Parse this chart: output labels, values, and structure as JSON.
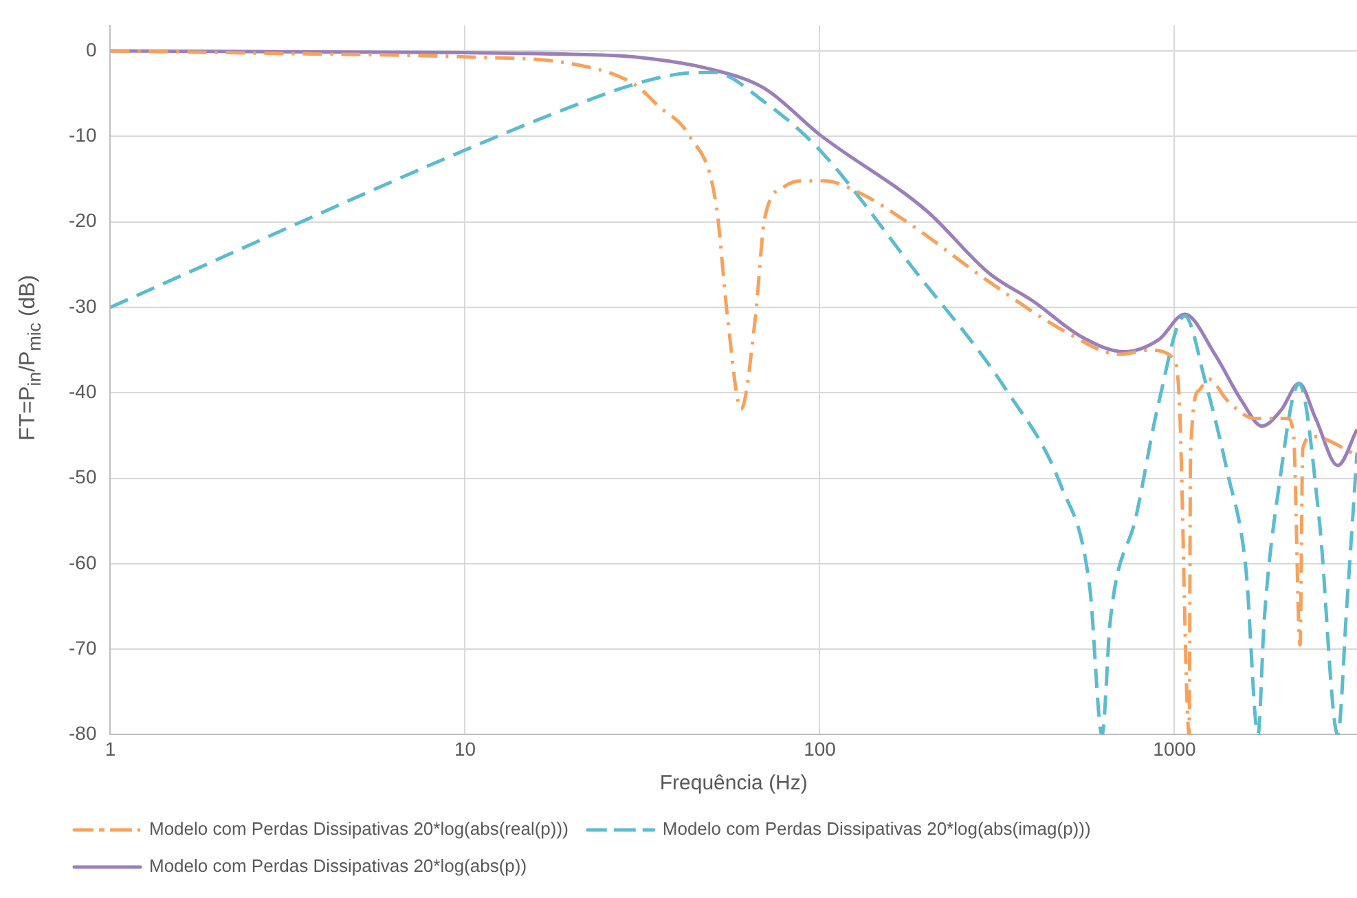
{
  "chart_data": {
    "type": "line",
    "xlabel": "Frequência (Hz)",
    "ylabel": "FT=P$_{in}$/P$_{mic}$ (dB)",
    "log": "x",
    "xlim": [
      1,
      3270
    ],
    "xticks": [
      1,
      10,
      100,
      1000
    ],
    "ylim": [
      -80,
      3
    ],
    "yticks": [
      0,
      -10,
      -20,
      -30,
      -40,
      -50,
      -60,
      -70,
      -80
    ],
    "grid": true,
    "legend": "bottom",
    "marker": "none",
    "series": [
      {
        "name": "Modelo com Perdas Dissipativas 20*log(abs(real(p)))",
        "color": "#f7a25c",
        "line_style": "dashdot",
        "x": [
          1,
          3,
          10,
          20,
          30,
          35,
          43,
          51,
          55,
          60,
          65.8,
          70,
          80,
          89,
          103,
          128,
          176,
          300,
          500,
          700,
          850,
          990,
          1032,
          1100,
          1110,
          1173,
          1250,
          1410,
          1680,
          2080,
          2165,
          2260,
          2300,
          2450,
          3270
        ],
        "values": [
          0,
          -0.3,
          -0.7,
          -1.5,
          -3.9,
          -6.4,
          -10,
          -17.9,
          -31.3,
          -41.9,
          -31.3,
          -19.5,
          -15.8,
          -15.2,
          -15.2,
          -16.5,
          -20,
          -27,
          -33,
          -35.5,
          -35,
          -35.9,
          -40.9,
          -80,
          -47,
          -39.7,
          -38.4,
          -40.9,
          -43,
          -43,
          -44.8,
          -69.5,
          -46.5,
          -45.1,
          -47.3
        ]
      },
      {
        "name": "Modelo com Perdas Dissipativas 20*log(abs(imag(p)))",
        "color": "#5bbccf",
        "line_style": "dashed",
        "x": [
          1,
          10,
          20,
          30,
          40,
          50,
          70,
          100,
          183,
          336,
          480,
          577,
          625,
          659,
          780,
          900,
          1069,
          1220,
          1410,
          1590,
          1720,
          1790,
          1970,
          2245,
          2560,
          2886,
          3060,
          3270
        ],
        "values": [
          -30,
          -11.6,
          -6.5,
          -3.9,
          -2.7,
          -2.5,
          -6,
          -11.6,
          -25.4,
          -39.7,
          -51,
          -62.8,
          -80,
          -66.7,
          -54.4,
          -41.4,
          -31,
          -38.6,
          -49.3,
          -60.6,
          -80,
          -66.7,
          -51,
          -38.9,
          -54.9,
          -80,
          -65,
          -47
        ]
      },
      {
        "name": "Modelo com Perdas Dissipativas 20*log(abs(p))",
        "color": "#9a7fba",
        "line_style": "solid",
        "x": [
          1,
          10,
          20,
          30,
          50,
          70,
          100,
          200,
          300,
          400,
          550,
          722,
          902,
          1069,
          1300,
          1550,
          1765,
          2000,
          2245,
          2500,
          2886,
          3270
        ],
        "values": [
          0,
          -0.2,
          -0.4,
          -0.7,
          -2.2,
          -4.4,
          -9.8,
          -18.7,
          -26,
          -29.3,
          -33.5,
          -35.2,
          -33.8,
          -30.8,
          -35.5,
          -41,
          -43.9,
          -42,
          -38.9,
          -43,
          -48.5,
          -44.3
        ]
      }
    ]
  }
}
